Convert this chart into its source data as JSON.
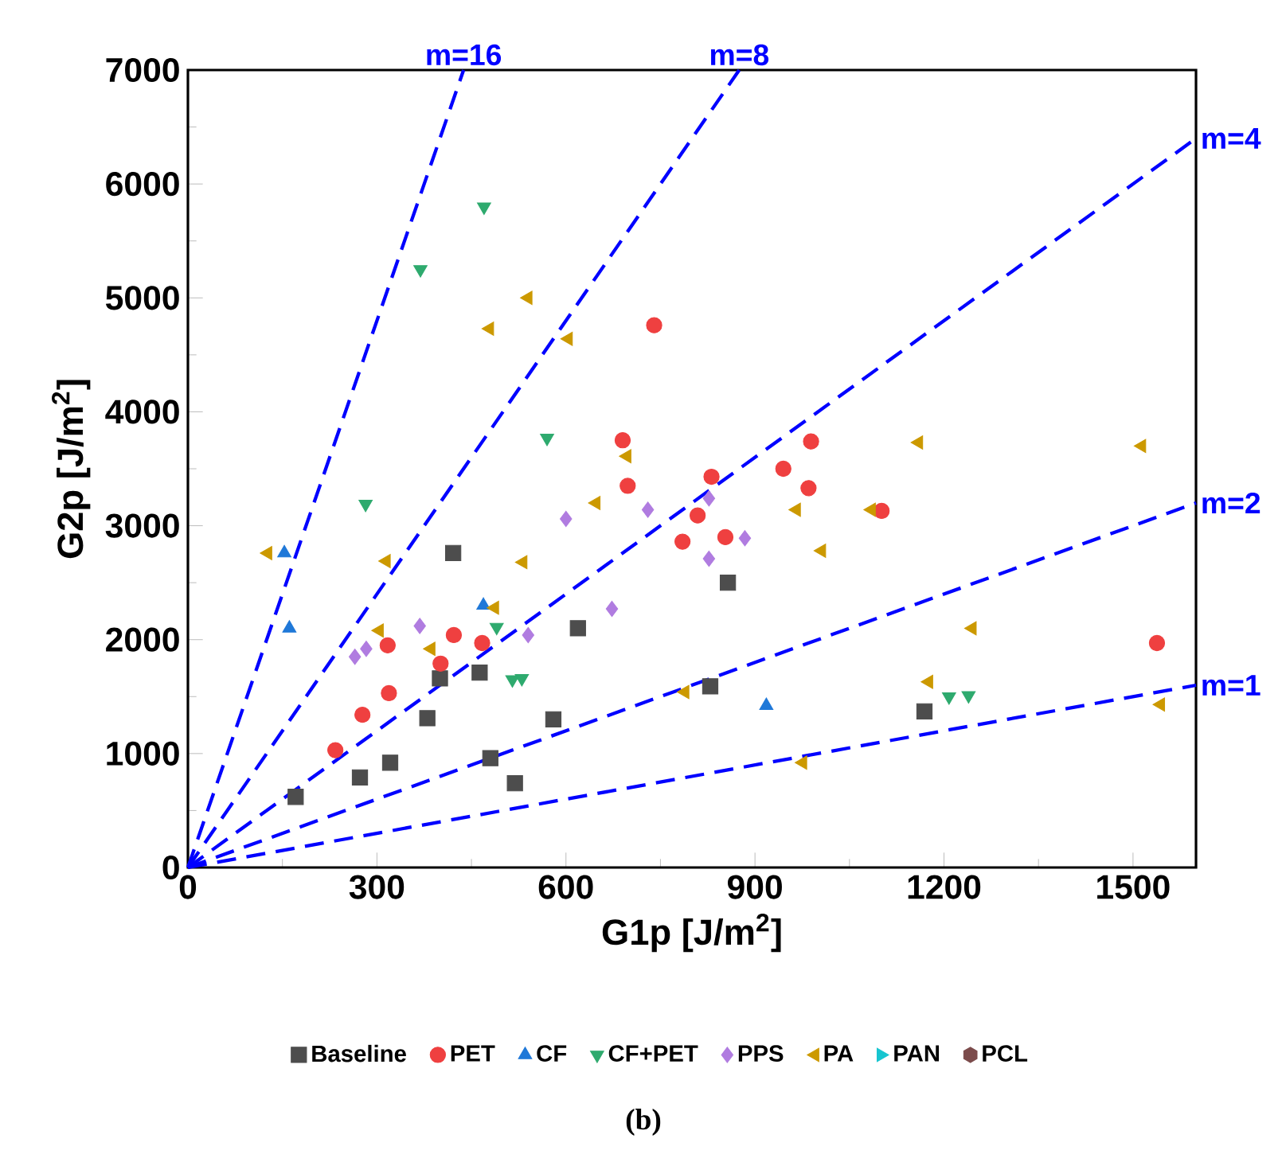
{
  "chart_data": {
    "type": "scatter",
    "xlabel": "G1p [J/m$^{2}$]",
    "ylabel": "G2p [J/m$^{2}$]",
    "xlim": [
      0,
      1600
    ],
    "ylim": [
      0,
      7000
    ],
    "xticks": [
      0,
      300,
      600,
      900,
      1200,
      1500
    ],
    "yticks": [
      0,
      1000,
      2000,
      3000,
      4000,
      5000,
      6000,
      7000
    ],
    "legend": "bottom",
    "annotations": [
      "(b)"
    ],
    "series": [
      {
        "name": "Baseline",
        "color": "#4d4d4d",
        "marker": "square",
        "x": [
          171,
          273,
          321,
          380,
          400,
          421,
          463,
          480,
          519,
          580,
          619,
          829,
          857,
          1169
        ],
        "values": [
          620,
          790,
          920,
          1310,
          1660,
          2760,
          1710,
          960,
          740,
          1300,
          2100,
          1590,
          2500,
          1370
        ]
      },
      {
        "name": "PET",
        "color": "#ef4040",
        "marker": "circle",
        "x": [
          234,
          277,
          317,
          319,
          401,
          422,
          467,
          690,
          698,
          740,
          785,
          809,
          831,
          853,
          945,
          985,
          989,
          1101,
          1538
        ],
        "values": [
          1030,
          1340,
          1950,
          1530,
          1790,
          2040,
          1970,
          3750,
          3350,
          4760,
          2860,
          3090,
          3430,
          2900,
          3500,
          3330,
          3740,
          3130,
          1970
        ]
      },
      {
        "name": "CF",
        "color": "#1f78d8",
        "marker": "triangle",
        "x": [
          153,
          161,
          469,
          918
        ],
        "values": [
          2760,
          2100,
          2300,
          1420
        ]
      },
      {
        "name": "CF+PET",
        "color": "#2eaa6e",
        "marker": "triangle-down",
        "x": [
          282,
          369,
          470,
          490,
          515,
          530,
          570,
          1208,
          1239
        ],
        "values": [
          3190,
          5250,
          5800,
          2110,
          1650,
          1660,
          3770,
          1500,
          1510
        ]
      },
      {
        "name": "PPS",
        "color": "#b07ce0",
        "marker": "diamond",
        "x": [
          265,
          283,
          368,
          540,
          600,
          673,
          730,
          827,
          827,
          884
        ],
        "values": [
          1850,
          1920,
          2120,
          2040,
          3060,
          2270,
          3140,
          3240,
          2710,
          2890
        ]
      },
      {
        "name": "PA",
        "color": "#cc9900",
        "marker": "triangle-left",
        "x": [
          127,
          304,
          315,
          386,
          479,
          487,
          532,
          540,
          604,
          648,
          697,
          789,
          966,
          976,
          1006,
          1085,
          1160,
          1176,
          1245,
          1514,
          1544
        ],
        "values": [
          2760,
          2080,
          2690,
          1920,
          4730,
          2280,
          2680,
          5000,
          4640,
          3200,
          3610,
          1540,
          3140,
          920,
          2780,
          3140,
          3730,
          1630,
          2100,
          3700,
          1430
        ]
      },
      {
        "name": "PAN",
        "color": "#17c5d0",
        "marker": "triangle-right"
      },
      {
        "name": "PCL",
        "color": "#7b4b4b",
        "marker": "hexagon"
      },
      {
        "name": "m=16",
        "type": "line",
        "line_style": "dashed",
        "color": "#0000ff",
        "x": [
          0,
          437.5
        ],
        "values": [
          0,
          7000
        ]
      },
      {
        "name": "m=8",
        "type": "line",
        "line_style": "dashed",
        "color": "#0000ff",
        "x": [
          0,
          875
        ],
        "values": [
          0,
          7000
        ]
      },
      {
        "name": "m=4",
        "type": "line",
        "line_style": "dashed",
        "color": "#0000ff",
        "x": [
          0,
          1600
        ],
        "values": [
          0,
          6400
        ]
      },
      {
        "name": "m=2",
        "type": "line",
        "line_style": "dashed",
        "color": "#0000ff",
        "x": [
          0,
          1600
        ],
        "values": [
          0,
          3200
        ]
      },
      {
        "name": "m=1",
        "type": "line",
        "line_style": "dashed",
        "color": "#0000ff",
        "x": [
          0,
          1600
        ],
        "values": [
          0,
          1600
        ]
      }
    ]
  }
}
